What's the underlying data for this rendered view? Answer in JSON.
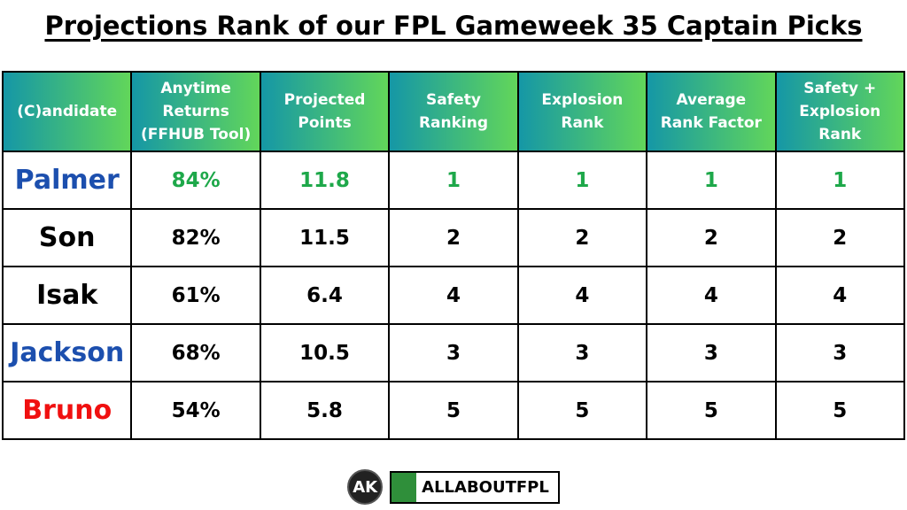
{
  "header": {
    "title": "Projections Rank of our FPL Gameweek 35 Captain Picks"
  },
  "table": {
    "columns": [
      "(C)andidate",
      "Anytime Returns (FFHUB Tool)",
      "Projected Points",
      "Safety Ranking",
      "Explosion Rank",
      "Average Rank Factor",
      "Safety + Explosion Rank"
    ],
    "rows": [
      [
        "Palmer",
        "84%",
        "11.8",
        "1",
        "1",
        "1",
        "1"
      ],
      [
        "Son",
        "82%",
        "11.5",
        "2",
        "2",
        "2",
        "2"
      ],
      [
        "Isak",
        "61%",
        "6.4",
        "4",
        "4",
        "4",
        "4"
      ],
      [
        "Jackson",
        "68%",
        "10.5",
        "3",
        "3",
        "3",
        "3"
      ],
      [
        "Bruno",
        "54%",
        "5.8",
        "5",
        "5",
        "5",
        "5"
      ]
    ]
  },
  "footer": {
    "badge": "AK",
    "brand": "ALLABOUTFPL"
  }
}
